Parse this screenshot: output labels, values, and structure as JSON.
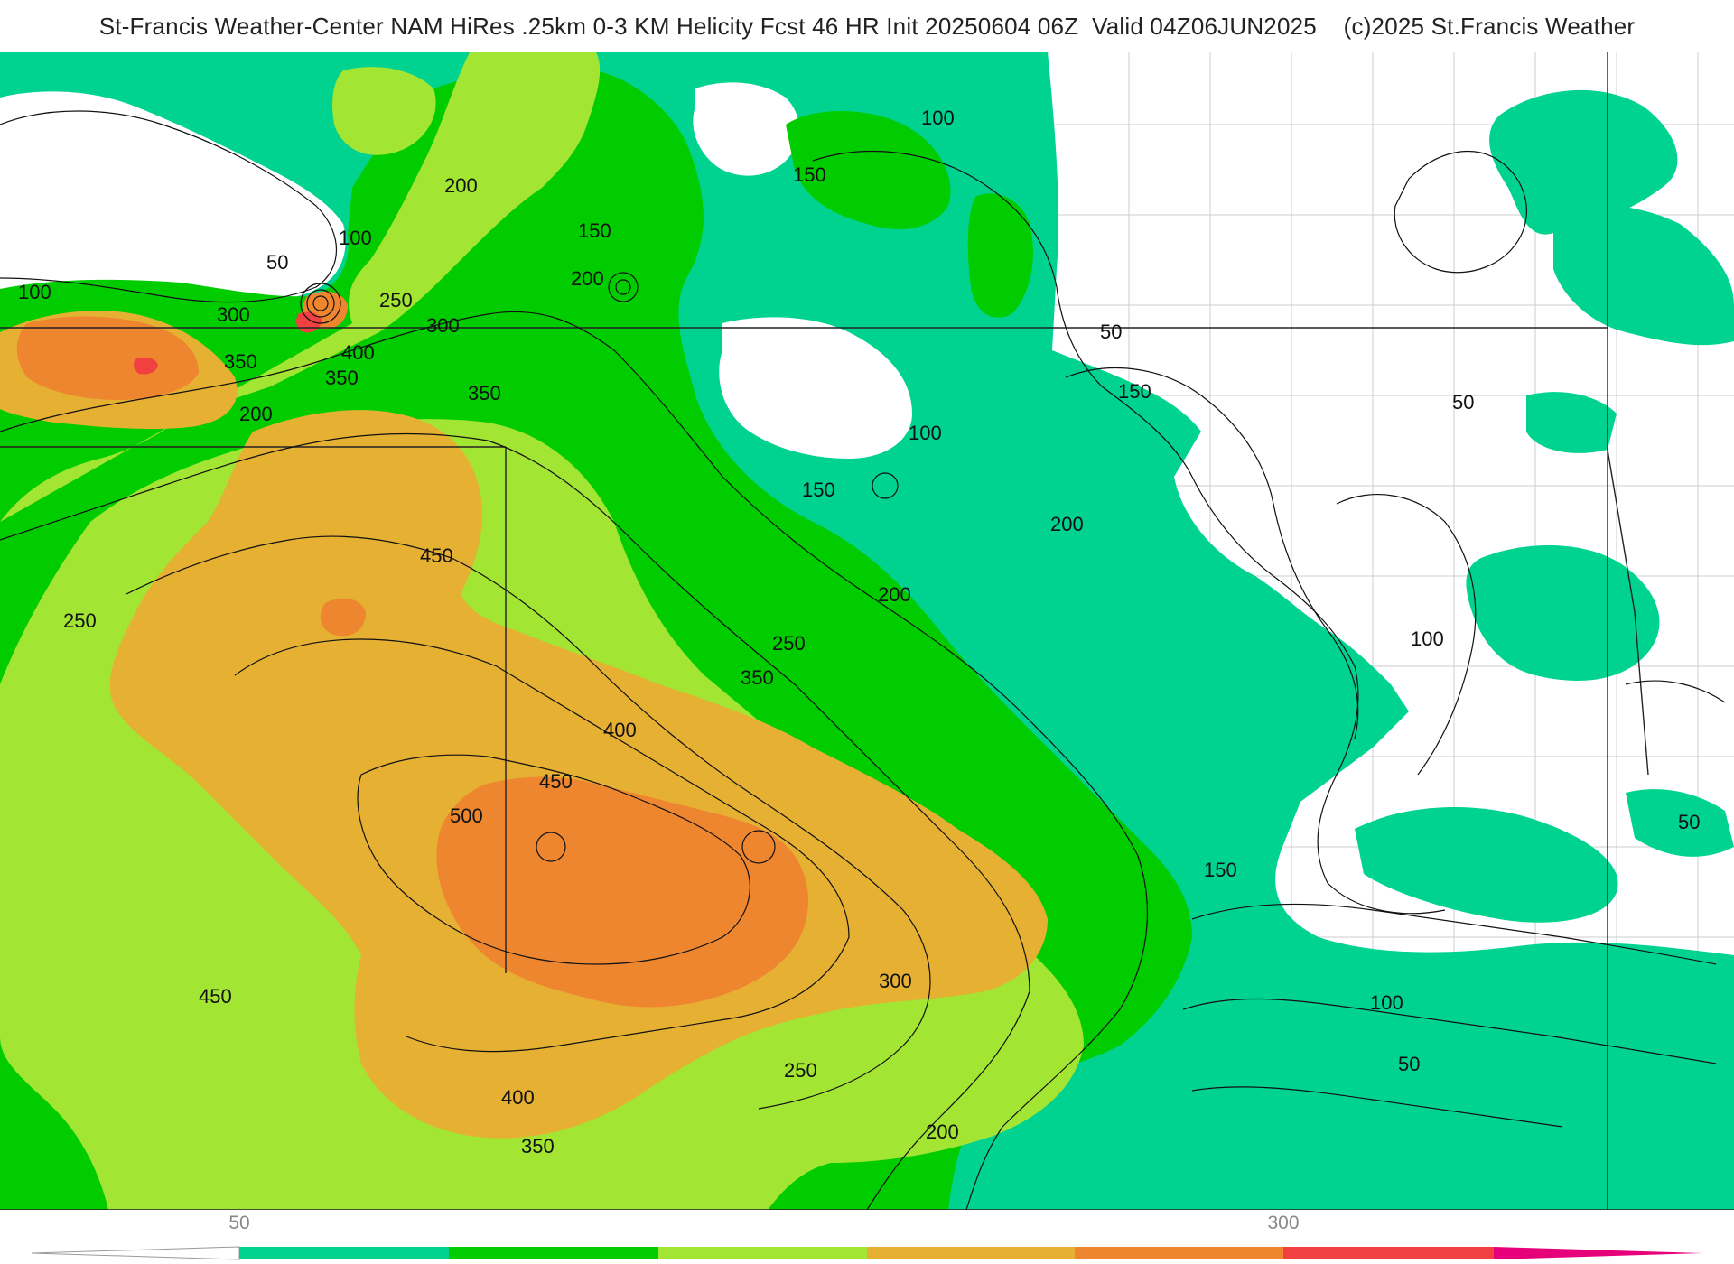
{
  "title": "St-Francis Weather-Center NAM HiRes .25km 0-3 KM Helicity Fcst 46 HR Init 20250604 06Z  Valid 04Z06JUN2025    (c)2025 St.Francis Weather",
  "colors": {
    "band_50": "#00d38f",
    "band_100": "#00cc00",
    "band_150": "#a2e533",
    "band_200": "#e6b033",
    "band_250": "#ee8630",
    "band_300": "#f04040",
    "band_350": "#e6007a",
    "contour": "#111111",
    "boundary": "#222222",
    "county": "#cccccc"
  },
  "contour_labels": [
    "50",
    "100",
    "150",
    "200",
    "250",
    "300",
    "350",
    "400",
    "450",
    "500"
  ],
  "colorbar": {
    "tick_labels": [
      "50",
      "300"
    ]
  }
}
